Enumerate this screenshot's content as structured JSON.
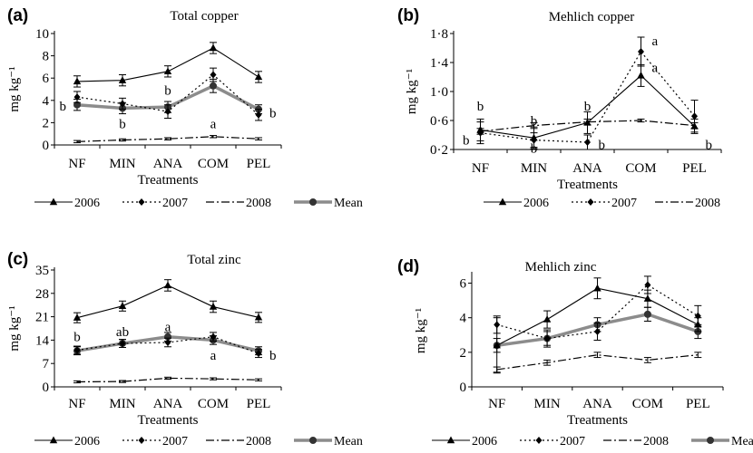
{
  "chart_data": [
    {
      "type": "line",
      "panel": "(a)",
      "title": "Total copper",
      "xlabel": "Treatments",
      "ylabel": "mg kg⁻¹",
      "categories": [
        "NF",
        "MIN",
        "ANA",
        "COM",
        "PEL"
      ],
      "ylim": [
        0,
        10
      ],
      "yticks": [
        "0",
        "2",
        "4",
        "6",
        "8",
        "10"
      ],
      "ytick_values": [
        0,
        2,
        4,
        6,
        8,
        10
      ],
      "series": [
        {
          "name": "2006",
          "style": "solid",
          "marker": "triangle",
          "values": [
            5.7,
            5.8,
            6.6,
            8.7,
            6.1
          ],
          "err": [
            0.5,
            0.5,
            0.5,
            0.5,
            0.5
          ]
        },
        {
          "name": "2007",
          "style": "dotted",
          "marker": "diamond",
          "values": [
            4.3,
            3.7,
            3.0,
            6.3,
            2.7
          ],
          "err": [
            0.5,
            0.5,
            0.6,
            0.6,
            0.5
          ]
        },
        {
          "name": "2008",
          "style": "dashdot",
          "marker": "none",
          "values": [
            0.3,
            0.45,
            0.55,
            0.75,
            0.55
          ],
          "err": [
            0.1,
            0.1,
            0.1,
            0.1,
            0.1
          ]
        },
        {
          "name": "Mean",
          "style": "thick",
          "marker": "circle",
          "values": [
            3.6,
            3.3,
            3.4,
            5.3,
            3.2
          ],
          "err": [
            0.5,
            0.5,
            0.5,
            0.6,
            0.4
          ]
        }
      ],
      "annotations": [
        {
          "text": "b",
          "x": "NF",
          "y": 3.5,
          "side": "left"
        },
        {
          "text": "b",
          "x": "MIN",
          "y": 1.9,
          "side": "center"
        },
        {
          "text": "b",
          "x": "ANA",
          "y": 4.9,
          "side": "center"
        },
        {
          "text": "a",
          "x": "COM",
          "y": 1.9,
          "side": "center"
        },
        {
          "text": "b",
          "x": "PEL",
          "y": 2.9,
          "side": "right"
        }
      ],
      "legend": [
        "2006",
        "2007",
        "2008",
        "Mean"
      ]
    },
    {
      "type": "line",
      "panel": "(b)",
      "title": "Mehlich copper",
      "xlabel": "Treatments",
      "ylabel": "mg kg⁻¹",
      "categories": [
        "NF",
        "MIN",
        "ANA",
        "COM",
        "PEL"
      ],
      "ylim": [
        0.2,
        1.8
      ],
      "yticks": [
        "0·2",
        "0·6",
        "1·0",
        "1·4",
        "1·8"
      ],
      "ytick_values": [
        0.2,
        0.6,
        1.0,
        1.4,
        1.8
      ],
      "series": [
        {
          "name": "2006",
          "style": "solid",
          "marker": "triangle",
          "values": [
            0.47,
            0.36,
            0.57,
            1.22,
            0.52
          ],
          "err": [
            0.15,
            0.15,
            0.15,
            0.15,
            0.1
          ]
        },
        {
          "name": "2007",
          "style": "dotted",
          "marker": "diamond",
          "values": [
            0.43,
            0.33,
            0.3,
            1.55,
            0.66
          ],
          "err": [
            0.15,
            0.1,
            0.1,
            0.2,
            0.22
          ]
        },
        {
          "name": "2008",
          "style": "dashdot",
          "marker": "none",
          "values": [
            0.45,
            0.53,
            0.58,
            0.6,
            0.53
          ],
          "err": [
            0.04,
            0.04,
            0.04,
            0.02,
            0.04
          ]
        }
      ],
      "annotations": [
        {
          "text": "b",
          "x": "NF",
          "y": 0.8,
          "side": "center"
        },
        {
          "text": "b",
          "x": "NF",
          "y": 0.33,
          "side": "left"
        },
        {
          "text": "b",
          "x": "MIN",
          "y": 0.6,
          "side": "center"
        },
        {
          "text": "b",
          "x": "MIN",
          "y": 0.22,
          "side": "center"
        },
        {
          "text": "b",
          "x": "ANA",
          "y": 0.8,
          "side": "center"
        },
        {
          "text": "b",
          "x": "ANA",
          "y": 0.27,
          "side": "right"
        },
        {
          "text": "a",
          "x": "COM",
          "y": 1.7,
          "side": "right"
        },
        {
          "text": "a",
          "x": "COM",
          "y": 1.33,
          "side": "right"
        },
        {
          "text": "b",
          "x": "PEL",
          "y": 0.27,
          "side": "right"
        }
      ],
      "legend": [
        "2006",
        "2007",
        "2008"
      ]
    },
    {
      "type": "line",
      "panel": "(c)",
      "title": "Total zinc",
      "xlabel": "Treatments",
      "ylabel": "mg kg⁻¹",
      "categories": [
        "NF",
        "MIN",
        "ANA",
        "COM",
        "PEL"
      ],
      "ylim": [
        0,
        35
      ],
      "yticks": [
        "0",
        "7",
        "14",
        "21",
        "28",
        "35"
      ],
      "ytick_values": [
        0,
        7,
        14,
        21,
        28,
        35
      ],
      "series": [
        {
          "name": "2006",
          "style": "solid",
          "marker": "triangle",
          "values": [
            20.7,
            24.2,
            30.4,
            24.0,
            20.8
          ],
          "err": [
            1.5,
            1.5,
            1.7,
            1.7,
            1.5
          ]
        },
        {
          "name": "2007",
          "style": "dotted",
          "marker": "diamond",
          "values": [
            11.0,
            13.0,
            13.3,
            15.0,
            10.0
          ],
          "err": [
            1.2,
            1.2,
            1.3,
            1.3,
            1.2
          ]
        },
        {
          "name": "2008",
          "style": "dashdot",
          "marker": "none",
          "values": [
            1.5,
            1.6,
            2.6,
            2.4,
            2.1
          ],
          "err": [
            0.3,
            0.3,
            0.3,
            0.3,
            0.3
          ]
        },
        {
          "name": "Mean",
          "style": "thick",
          "marker": "circle",
          "values": [
            10.8,
            13.0,
            15.0,
            14.0,
            10.8
          ],
          "err": [
            1.2,
            1.2,
            1.3,
            1.3,
            1.2
          ]
        }
      ],
      "annotations": [
        {
          "text": "b",
          "x": "NF",
          "y": 15.0,
          "side": "center"
        },
        {
          "text": "ab",
          "x": "MIN",
          "y": 16.5,
          "side": "center"
        },
        {
          "text": "a",
          "x": "ANA",
          "y": 18.0,
          "side": "center"
        },
        {
          "text": "a",
          "x": "COM",
          "y": 9.5,
          "side": "center"
        },
        {
          "text": "b",
          "x": "PEL",
          "y": 9.5,
          "side": "right"
        }
      ],
      "legend": [
        "2006",
        "2007",
        "2008",
        "Mean"
      ]
    },
    {
      "type": "line",
      "panel": "(d)",
      "title": "Mehlich zinc",
      "xlabel": "Treatments",
      "ylabel": "mg kg⁻¹",
      "categories": [
        "NF",
        "MIN",
        "ANA",
        "COM",
        "PEL"
      ],
      "ylim": [
        0,
        6.5
      ],
      "yticks": [
        "0",
        "2",
        "4",
        "6"
      ],
      "ytick_values": [
        0,
        2,
        4,
        6
      ],
      "series": [
        {
          "name": "2006",
          "style": "solid",
          "marker": "triangle",
          "values": [
            2.4,
            3.9,
            5.7,
            5.1,
            3.6
          ],
          "err": [
            1.6,
            0.5,
            0.6,
            0.5,
            0.4
          ]
        },
        {
          "name": "2007",
          "style": "dotted",
          "marker": "diamond",
          "values": [
            3.6,
            2.8,
            3.2,
            5.9,
            4.1
          ],
          "err": [
            0.5,
            0.5,
            0.5,
            0.5,
            0.6
          ]
        },
        {
          "name": "2008",
          "style": "dashdot",
          "marker": "none",
          "values": [
            1.0,
            1.4,
            1.85,
            1.55,
            1.85
          ],
          "err": [
            0.15,
            0.15,
            0.15,
            0.15,
            0.15
          ]
        },
        {
          "name": "Mean",
          "style": "thick",
          "marker": "circle",
          "values": [
            2.4,
            2.8,
            3.6,
            4.2,
            3.2
          ],
          "err": [
            0.4,
            0.4,
            0.4,
            0.4,
            0.4
          ]
        }
      ],
      "annotations": [],
      "legend": [
        "2006",
        "2007",
        "2008",
        "Mean"
      ]
    }
  ]
}
